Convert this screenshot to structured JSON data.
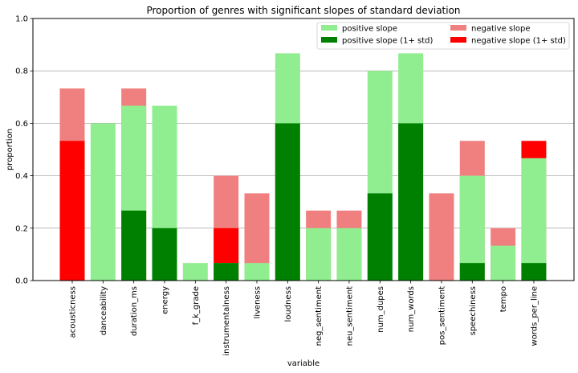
{
  "chart_data": {
    "type": "bar",
    "title": "Proportion of genres with significant slopes of standard deviation",
    "xlabel": "variable",
    "ylabel": "proportion",
    "ylim": [
      0,
      1.0
    ],
    "yticks": [
      "0.0",
      "0.2",
      "0.4",
      "0.6",
      "0.8",
      "1.0"
    ],
    "grid": "horizontal",
    "legend_position": "top-right",
    "categories": [
      "acousticness",
      "danceability",
      "duration_ms",
      "energy",
      "f_k_grade",
      "instrumentalness",
      "liveness",
      "loudness",
      "neg_sentiment",
      "neu_sentiment",
      "num_dupes",
      "num_words",
      "pos_sentiment",
      "speechiness",
      "tempo",
      "words_per_line"
    ],
    "series": [
      {
        "name": "positive slope",
        "color": "#90ee90",
        "values": [
          0,
          0.6,
          0.667,
          0.667,
          0.067,
          0.067,
          0.067,
          0.867,
          0.2,
          0.2,
          0.8,
          0.867,
          0,
          0.4,
          0.133,
          0.467
        ]
      },
      {
        "name": "positive slope (1+ std)",
        "color": "#008000",
        "values": [
          0,
          0,
          0.267,
          0.2,
          0,
          0.067,
          0,
          0.6,
          0,
          0,
          0.333,
          0.6,
          0,
          0.067,
          0,
          0.067
        ]
      },
      {
        "name": "negative slope",
        "color": "#f08080",
        "values": [
          0.733,
          0,
          0.733,
          0,
          0,
          0.4,
          0.333,
          0,
          0.267,
          0.267,
          0,
          0,
          0.333,
          0.533,
          0.2,
          0
        ]
      },
      {
        "name": "negative slope (1+ std)",
        "color": "#ff0000",
        "values": [
          0.533,
          0,
          0,
          0,
          0,
          0.2,
          0,
          0,
          0,
          0,
          0,
          0,
          0,
          0,
          0,
          0.533
        ]
      }
    ],
    "draw_order": [
      "negative slope",
      "negative slope (1+ std)",
      "positive slope",
      "positive slope (1+ std)"
    ],
    "legend_order": [
      "positive slope",
      "positive slope (1+ std)",
      "negative slope",
      "negative slope (1+ std)"
    ]
  }
}
